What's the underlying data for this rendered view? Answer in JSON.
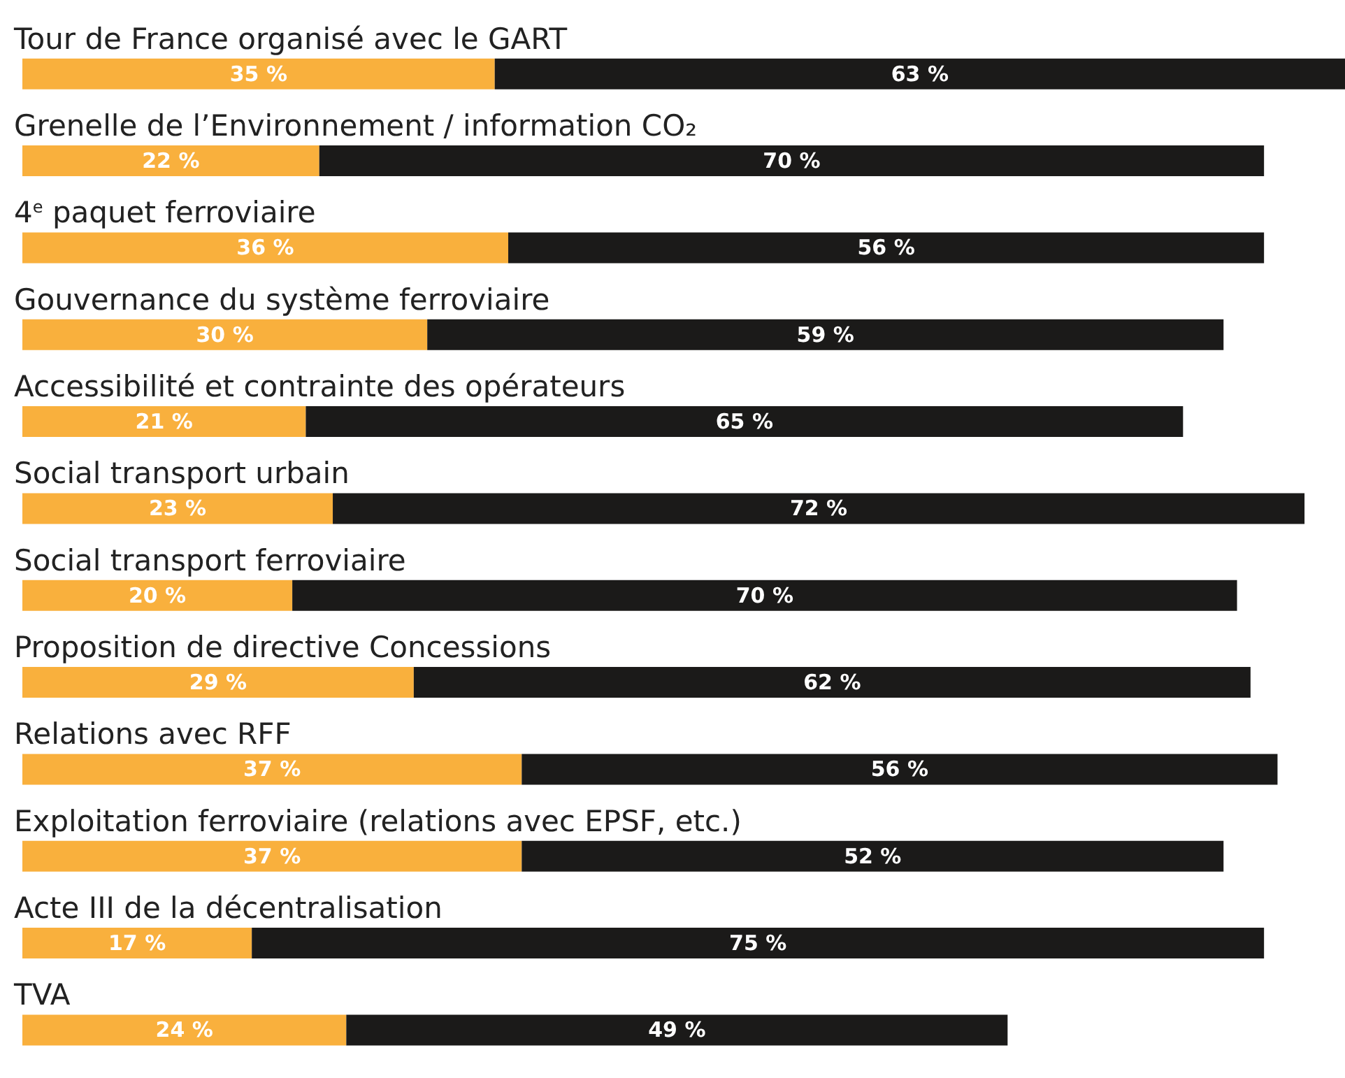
{
  "chart_data": {
    "type": "bar",
    "orientation": "horizontal",
    "stacked": true,
    "categories": [
      "Tour de France organisé avec le GART",
      "Grenelle de l’Environnement / information CO₂",
      "4$^{e}$ paquet ferroviaire",
      "Gouvernance du système ferroviaire",
      "Accessibilité et contrainte des opérateurs",
      "Social transport urbain",
      "Social transport ferroviaire",
      "Proposition de directive Concessions",
      "Relations avec RFF",
      "Exploitation ferroviaire (relations avec EPSF, etc.)",
      "Acte III de la décentralisation",
      "TVA"
    ],
    "series": [
      {
        "color": "#f9b03d",
        "values": [
          35,
          22,
          36,
          30,
          21,
          23,
          20,
          29,
          37,
          37,
          17,
          24
        ],
        "value_labels": [
          "35 %",
          "22 %",
          "36 %",
          "30 %",
          "21 %",
          "23 %",
          "20 %",
          "29 %",
          "37 %",
          "37 %",
          "17 %",
          "24 %"
        ]
      },
      {
        "color": "#1b1a19",
        "values": [
          63,
          70,
          56,
          59,
          65,
          72,
          70,
          62,
          56,
          52,
          75,
          49
        ],
        "value_labels": [
          "63 %",
          "70 %",
          "56 %",
          "59 %",
          "65 %",
          "72 %",
          "70 %",
          "62 %",
          "56 %",
          "52 %",
          "75 %",
          "49 %"
        ]
      }
    ],
    "grid": false,
    "legend": false
  }
}
